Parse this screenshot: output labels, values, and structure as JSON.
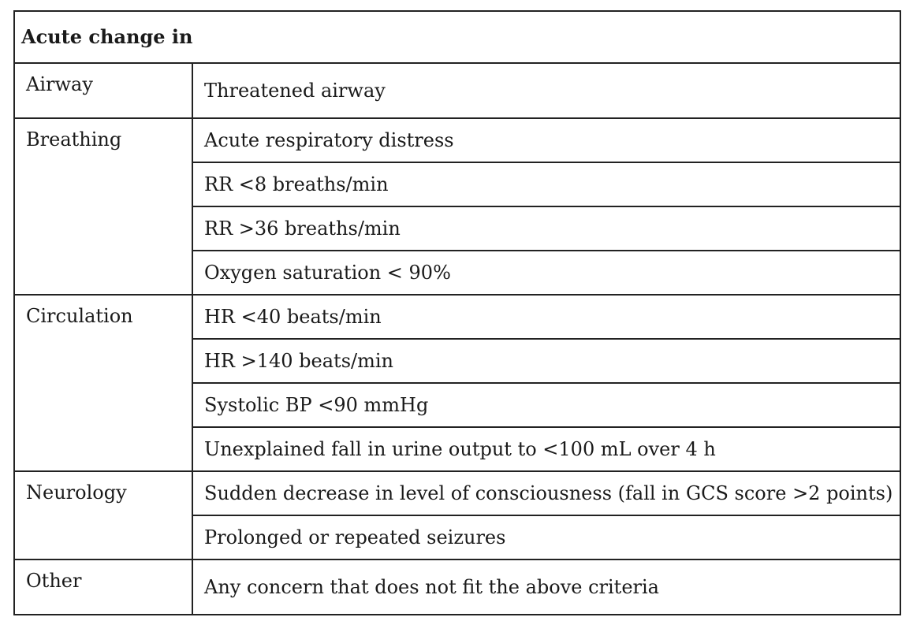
{
  "table": {
    "header": "Acute change in",
    "groups": [
      {
        "category": "Airway",
        "criteria": [
          "Threatened airway"
        ]
      },
      {
        "category": "Breathing",
        "criteria": [
          "Acute respiratory distress",
          "RR <8 breaths/min",
          "RR >36 breaths/min",
          "Oxygen saturation < 90%"
        ]
      },
      {
        "category": "Circulation",
        "criteria": [
          "HR <40 beats/min",
          "HR >140 beats/min",
          "Systolic BP <90 mmHg",
          "Unexplained fall in urine output to <100 mL over 4 h"
        ]
      },
      {
        "category": "Neurology",
        "criteria": [
          "Sudden decrease in level of consciousness (fall in GCS score >2 points)",
          "Prolonged or repeated seizures"
        ]
      },
      {
        "category": "Other",
        "criteria": [
          "Any concern that does not fit the above criteria"
        ]
      }
    ]
  }
}
